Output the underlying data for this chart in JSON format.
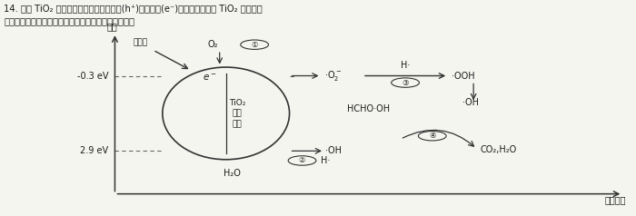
{
  "title_line1": "14. 已知 TiO₂ 在光照下可以激发产生空穴(h⁺)和光电子(e⁻)，某课题组研究 TiO₂ 光催化降",
  "title_line2": "解室内污染物甲醛的机理如图所示，下列说法错误的是",
  "energy_label": "能量",
  "xaxis_label": "反应历程",
  "sunlight_label": "太阳光",
  "tio2_label": "TiO₂\n纳米\n颗粒",
  "level_top_label": "-0.3 eV",
  "level_bottom_label": "2.9 eV",
  "bg_color": "#f5f5f0",
  "text_color": "#1a1a1a",
  "ellipse_color": "#333333",
  "arrow_color": "#333333",
  "dashed_color": "#666666"
}
